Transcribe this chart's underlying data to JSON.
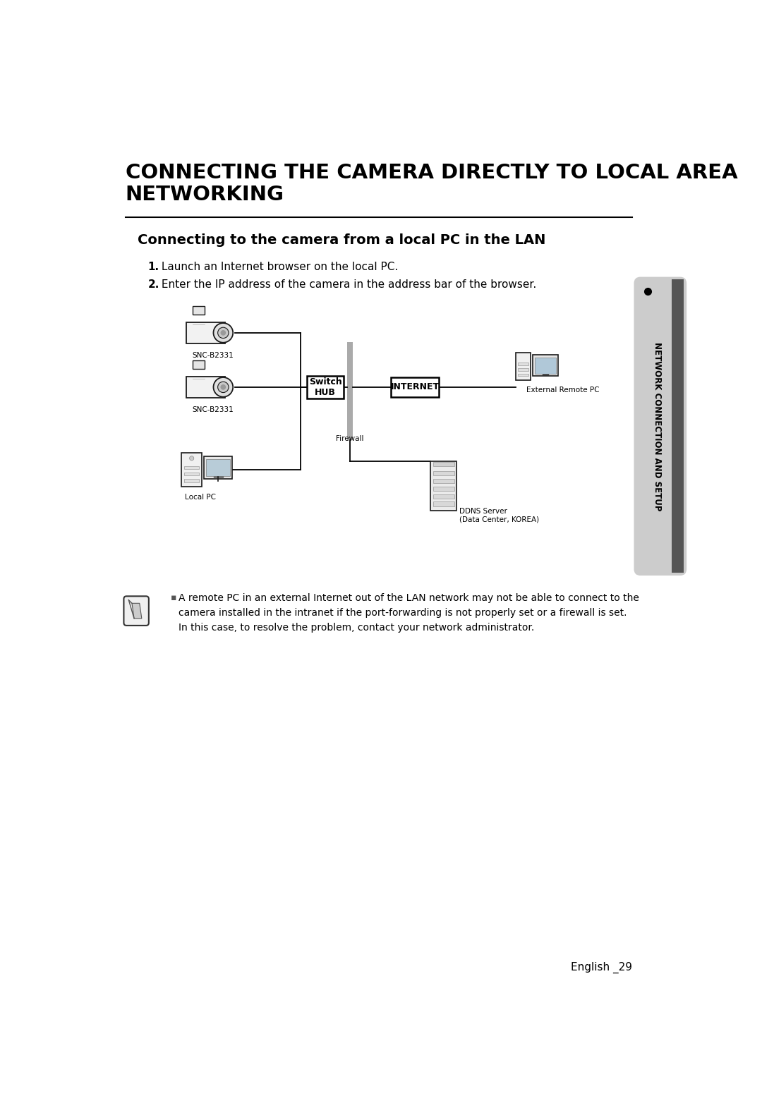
{
  "page_bg": "#ffffff",
  "sidebar_bg": "#d0d0d0",
  "sidebar_dark": "#333333",
  "sidebar_text": "NETWORK CONNECTION AND SETUP",
  "sidebar_dot_color": "#000000",
  "title_main": "CONNECTING THE CAMERA DIRECTLY TO LOCAL AREA\nNETWORKING",
  "title_hr_color": "#000000",
  "subtitle": "Connecting to the camera from a local PC in the LAN",
  "step1_bold": "1.",
  "step1_text": " Launch an Internet browser on the local PC.",
  "step2_bold": "2.",
  "step2_text": " Enter the IP address of the camera in the address bar of the browser.",
  "note_text": "A remote PC in an external Internet out of the LAN network may not be able to connect to the\ncamera installed in the intranet if the port-forwarding is not properly set or a firewall is set.\nIn this case, to resolve the problem, contact your network administrator.",
  "note_bullet_color": "#808080",
  "footer_text": "English _29",
  "diagram": {
    "switch_hub_label": "Switch\nHUB",
    "internet_label": "INTERNET",
    "firewall_label": "Firewall",
    "external_pc_label": "External Remote PC",
    "ddns_label": "DDNS Server\n(Data Center, KOREA)",
    "local_pc_label": "Local PC",
    "snc_top_label": "SNC-B2331",
    "snc_mid_label": "SNC-B2331"
  }
}
